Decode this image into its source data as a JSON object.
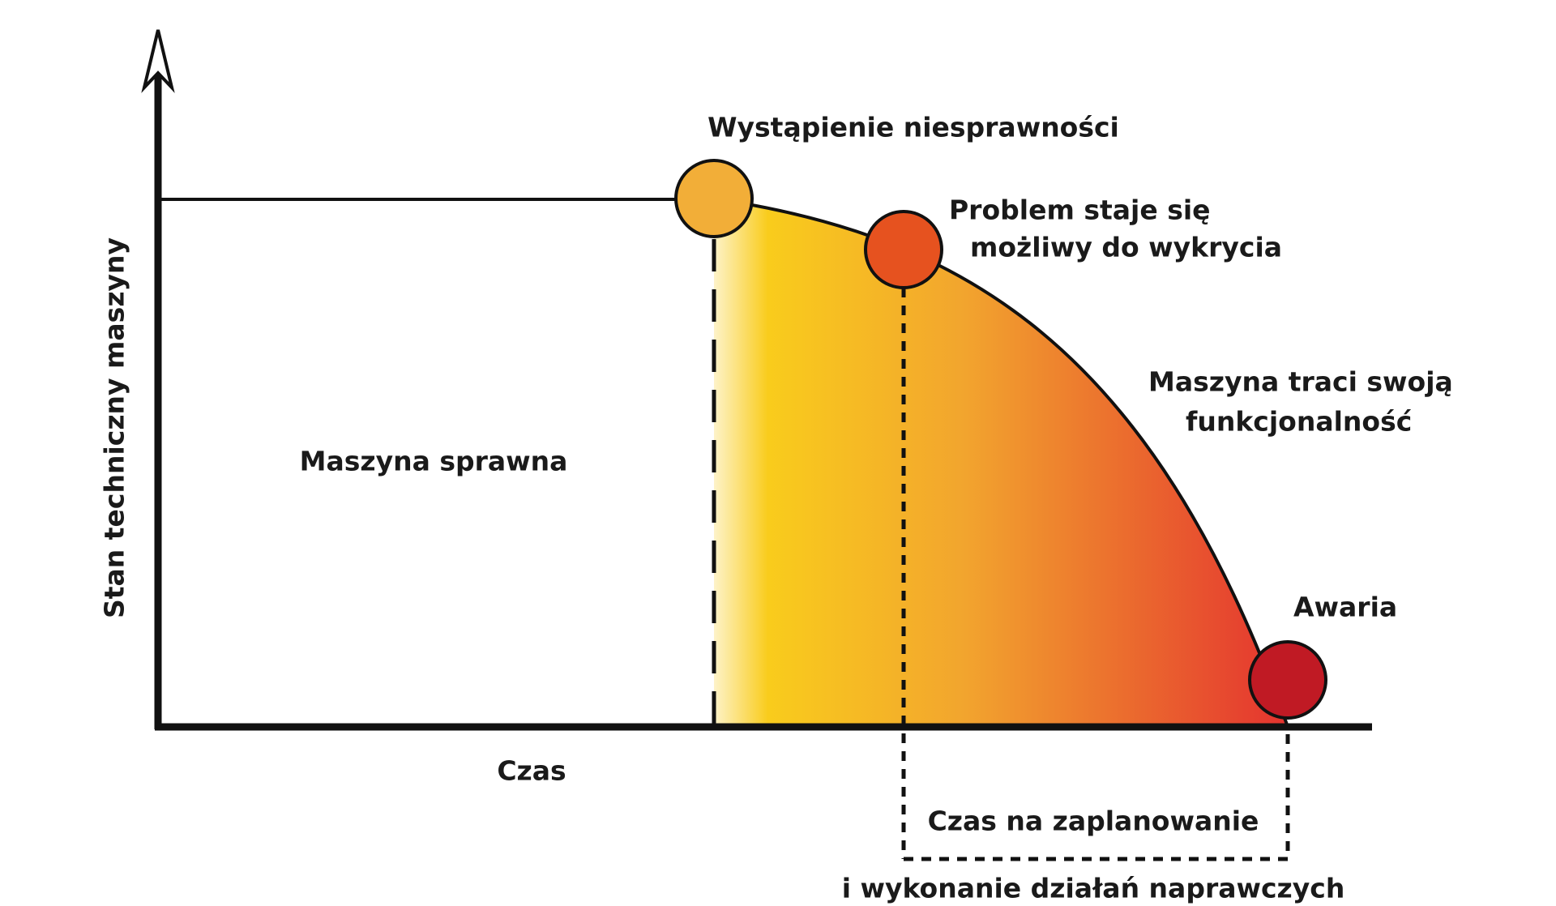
{
  "axes": {
    "y_label": "Stan techniczny maszyny",
    "x_label": "Czas"
  },
  "region_label": "Maszyna sprawna",
  "events": [
    {
      "lines": [
        "Wystąpienie niesprawności"
      ]
    },
    {
      "lines": [
        "Problem staje się",
        "możliwy do wykrycia"
      ]
    },
    {
      "lines": [
        "Awaria"
      ]
    }
  ],
  "curve_label": {
    "lines": [
      "Maszyna traci swoją",
      "funkcjonalność"
    ]
  },
  "interval_label": {
    "lines": [
      "Czas na zaplanowanie",
      "i wykonanie działań naprawczych"
    ]
  }
}
